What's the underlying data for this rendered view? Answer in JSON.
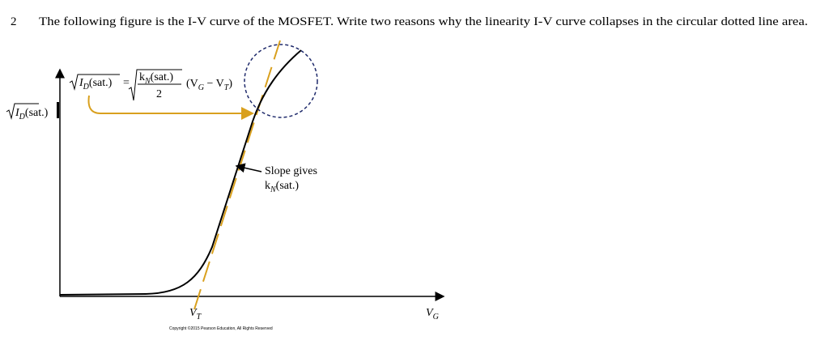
{
  "question": {
    "number": "2",
    "text": "The following figure is the I-V curve of the MOSFET. Write two reasons why the linearity I-V curve collapses in the circular dotted line area."
  },
  "figure": {
    "y_label": {
      "symbol": "I",
      "subscript": "D",
      "suffix": "(sat.)"
    },
    "equation": {
      "lhs_symbol": "I",
      "lhs_subscript": "D",
      "lhs_suffix": "(sat.)",
      "equals": "=",
      "numerator_symbol": "k",
      "numerator_subscript": "N",
      "numerator_suffix": "(sat.)",
      "denominator": "2",
      "factor_open": "(V",
      "factor_sub1": "G",
      "minus": " − V",
      "factor_sub2": "T",
      "factor_close": ")"
    },
    "slope_note": {
      "line1": "Slope gives",
      "line2_symbol": "k",
      "line2_subscript": "N",
      "line2_suffix": "(sat.)"
    },
    "x_tick_label": {
      "symbol": "V",
      "subscript": "T"
    },
    "x_axis_label": {
      "symbol": "V",
      "subscript": "G"
    },
    "copyright": "Copyright ©2015 Pearson Education, All Rights Reserved"
  }
}
